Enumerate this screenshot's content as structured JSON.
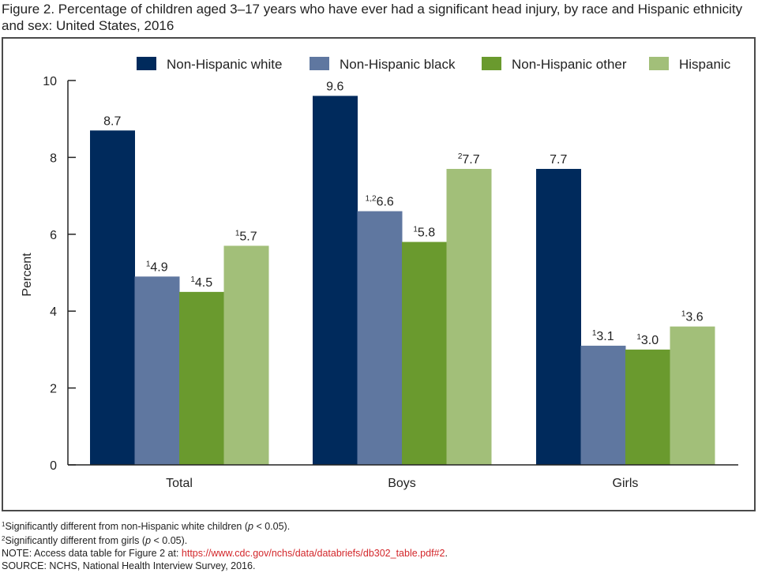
{
  "figure": {
    "title": "Figure 2. Percentage of children aged 3–17 years who have ever had a significant head injury, by race and Hispanic ethnicity and sex: United States, 2016"
  },
  "chart_data": {
    "type": "bar",
    "title": "Percentage of children aged 3–17 years who have ever had a significant head injury, by race and Hispanic ethnicity and sex: United States, 2016",
    "xlabel": "",
    "ylabel": "Percent",
    "ylim": [
      0,
      10
    ],
    "yticks": [
      0,
      2,
      4,
      6,
      8,
      10
    ],
    "grid": false,
    "legend_position": "top",
    "categories": [
      "Total",
      "Boys",
      "Girls"
    ],
    "series": [
      {
        "name": "Non-Hispanic white",
        "color": "#002a5c",
        "values": [
          8.7,
          9.6,
          7.7
        ],
        "notes": [
          "",
          "",
          ""
        ]
      },
      {
        "name": "Non-Hispanic black",
        "color": "#5f77a0",
        "values": [
          4.9,
          6.6,
          3.1
        ],
        "notes": [
          "1",
          "1,2",
          "1"
        ]
      },
      {
        "name": "Non-Hispanic other",
        "color": "#6a9a2e",
        "values": [
          4.5,
          5.8,
          3.0
        ],
        "notes": [
          "1",
          "1",
          "1"
        ]
      },
      {
        "name": "Hispanic",
        "color": "#a2bf79",
        "values": [
          5.7,
          7.7,
          3.6
        ],
        "notes": [
          "1",
          "2",
          "1"
        ]
      }
    ]
  },
  "footnotes": {
    "fn1_mark": "1",
    "fn1_text_a": "Significantly different from non-Hispanic white children (",
    "fn1_p": "p",
    "fn1_text_b": " < 0.05).",
    "fn2_mark": "2",
    "fn2_text_a": "Significantly different from girls (",
    "fn2_p": "p",
    "fn2_text_b": " < 0.05).",
    "note_label": "NOTE: Access data table for Figure 2 at: ",
    "note_link": "https://www.cdc.gov/nchs/data/databriefs/db302_table.pdf#2",
    "note_end": ".",
    "source": "SOURCE: NCHS, National Health Interview Survey, 2016."
  }
}
